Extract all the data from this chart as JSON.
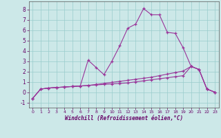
{
  "xlabel": "Windchill (Refroidissement éolien,°C)",
  "bg_color": "#cce8e8",
  "grid_color": "#99cccc",
  "line_color": "#993399",
  "x_hours": [
    0,
    1,
    2,
    3,
    4,
    5,
    6,
    7,
    8,
    9,
    10,
    11,
    12,
    13,
    14,
    15,
    16,
    17,
    18,
    19,
    20,
    21,
    22,
    23
  ],
  "series1": [
    -0.6,
    0.3,
    0.4,
    0.45,
    0.5,
    0.55,
    0.6,
    3.1,
    2.4,
    1.7,
    3.0,
    4.5,
    6.2,
    6.6,
    8.1,
    7.5,
    7.5,
    5.8,
    5.7,
    4.3,
    2.5,
    2.2,
    0.3,
    0.0
  ],
  "series2": [
    -0.6,
    0.3,
    0.4,
    0.45,
    0.5,
    0.55,
    0.6,
    0.65,
    0.7,
    0.75,
    0.8,
    0.85,
    0.9,
    1.0,
    1.1,
    1.2,
    1.3,
    1.4,
    1.5,
    1.6,
    2.5,
    2.2,
    0.3,
    0.0
  ],
  "series3": [
    -0.6,
    0.3,
    0.4,
    0.45,
    0.5,
    0.55,
    0.6,
    0.65,
    0.75,
    0.85,
    0.95,
    1.05,
    1.15,
    1.25,
    1.35,
    1.45,
    1.6,
    1.75,
    1.9,
    2.05,
    2.5,
    2.2,
    0.3,
    0.0
  ],
  "ylim": [
    -1.5,
    8.8
  ],
  "yticks": [
    -1,
    0,
    1,
    2,
    3,
    4,
    5,
    6,
    7,
    8
  ],
  "xlim": [
    -0.5,
    23.5
  ],
  "xtick_fontsize": 4.5,
  "ytick_fontsize": 5.5,
  "xlabel_fontsize": 5.5
}
